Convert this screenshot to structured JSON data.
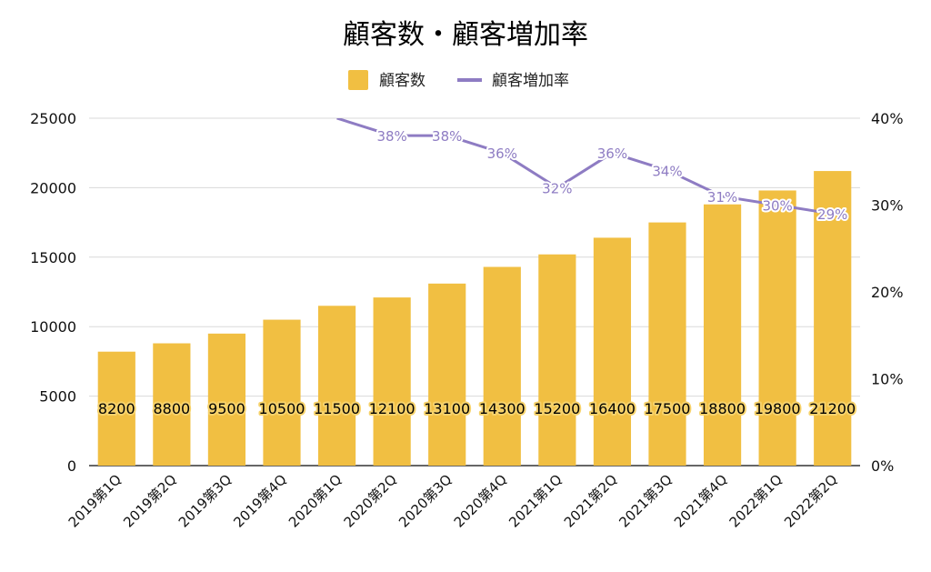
{
  "chart_data": {
    "type": "bar",
    "title": "顧客数・顧客増加率",
    "categories": [
      "2019第1Q",
      "2019第2Q",
      "2019第3Q",
      "2019第4Q",
      "2020第1Q",
      "2020第2Q",
      "2020第3Q",
      "2020第4Q",
      "2021第1Q",
      "2021第2Q",
      "2021第3Q",
      "2021第4Q",
      "2022第1Q",
      "2022第2Q"
    ],
    "series": [
      {
        "name": "顧客数",
        "type": "bar",
        "axis": "left",
        "color": "#f1bf42",
        "values": [
          8200,
          8800,
          9500,
          10500,
          11500,
          12100,
          13100,
          14300,
          15200,
          16400,
          17500,
          18800,
          19800,
          21200
        ],
        "labels": [
          "8200",
          "8800",
          "9500",
          "10500",
          "11500",
          "12100",
          "13100",
          "14300",
          "15200",
          "16400",
          "17500",
          "18800",
          "19800",
          "21200"
        ]
      },
      {
        "name": "顧客増加率",
        "type": "line",
        "axis": "right",
        "color": "#8e7cc3",
        "values": [
          null,
          null,
          null,
          null,
          40,
          38,
          38,
          36,
          32,
          36,
          34,
          31,
          30,
          29
        ],
        "labels": [
          "",
          "",
          "",
          "",
          "",
          "38%",
          "38%",
          "36%",
          "32%",
          "36%",
          "34%",
          "31%",
          "30%",
          "29%"
        ]
      }
    ],
    "ylim_left": [
      0,
      25000
    ],
    "yticks_left": [
      "0",
      "5000",
      "10000",
      "15000",
      "20000",
      "25000"
    ],
    "ylim_right": [
      0,
      40
    ],
    "yticks_right": [
      "0%",
      "10%",
      "20%",
      "30%",
      "40%"
    ],
    "grid": true,
    "legend_position": "top"
  }
}
